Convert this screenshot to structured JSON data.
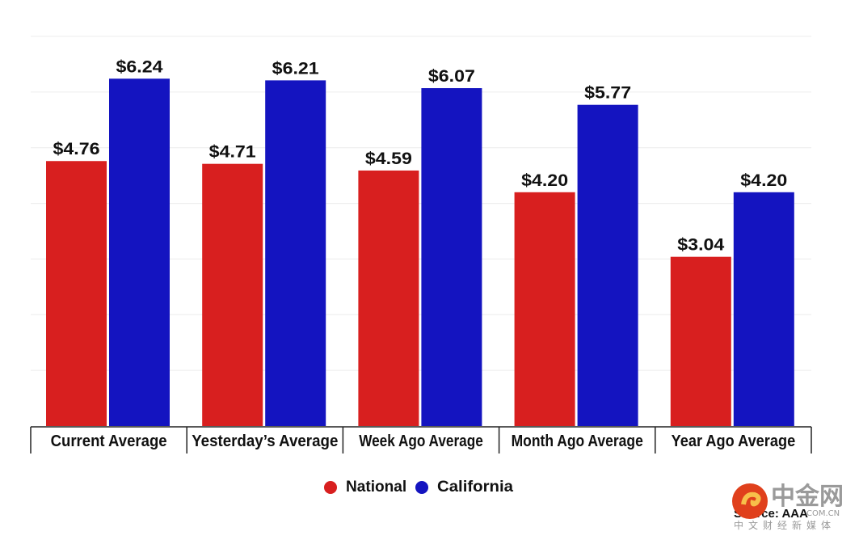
{
  "chart_data": {
    "type": "bar",
    "categories": [
      "Current Average",
      "Yesterday’s Average",
      "Week Ago Average",
      "Month Ago Average",
      "Year Ago Average"
    ],
    "series": [
      {
        "name": "National",
        "values": [
          4.76,
          4.71,
          4.59,
          4.2,
          3.04
        ],
        "color": "#d81f1f"
      },
      {
        "name": "California",
        "values": [
          6.24,
          6.21,
          6.07,
          5.77,
          4.2
        ],
        "color": "#1414c0"
      }
    ],
    "data_labels": [
      [
        "$4.76",
        "$4.71",
        "$4.59",
        "$4.20",
        "$3.04"
      ],
      [
        "$6.24",
        "$6.21",
        "$6.07",
        "$5.77",
        "$4.20"
      ]
    ],
    "ylim": [
      0,
      7
    ],
    "grid": true,
    "legend_position": "bottom-center",
    "source": "Source: AAA"
  },
  "watermark": {
    "name": "中金网",
    "domain": "COM.CN",
    "tagline": "中文财经新媒体"
  }
}
